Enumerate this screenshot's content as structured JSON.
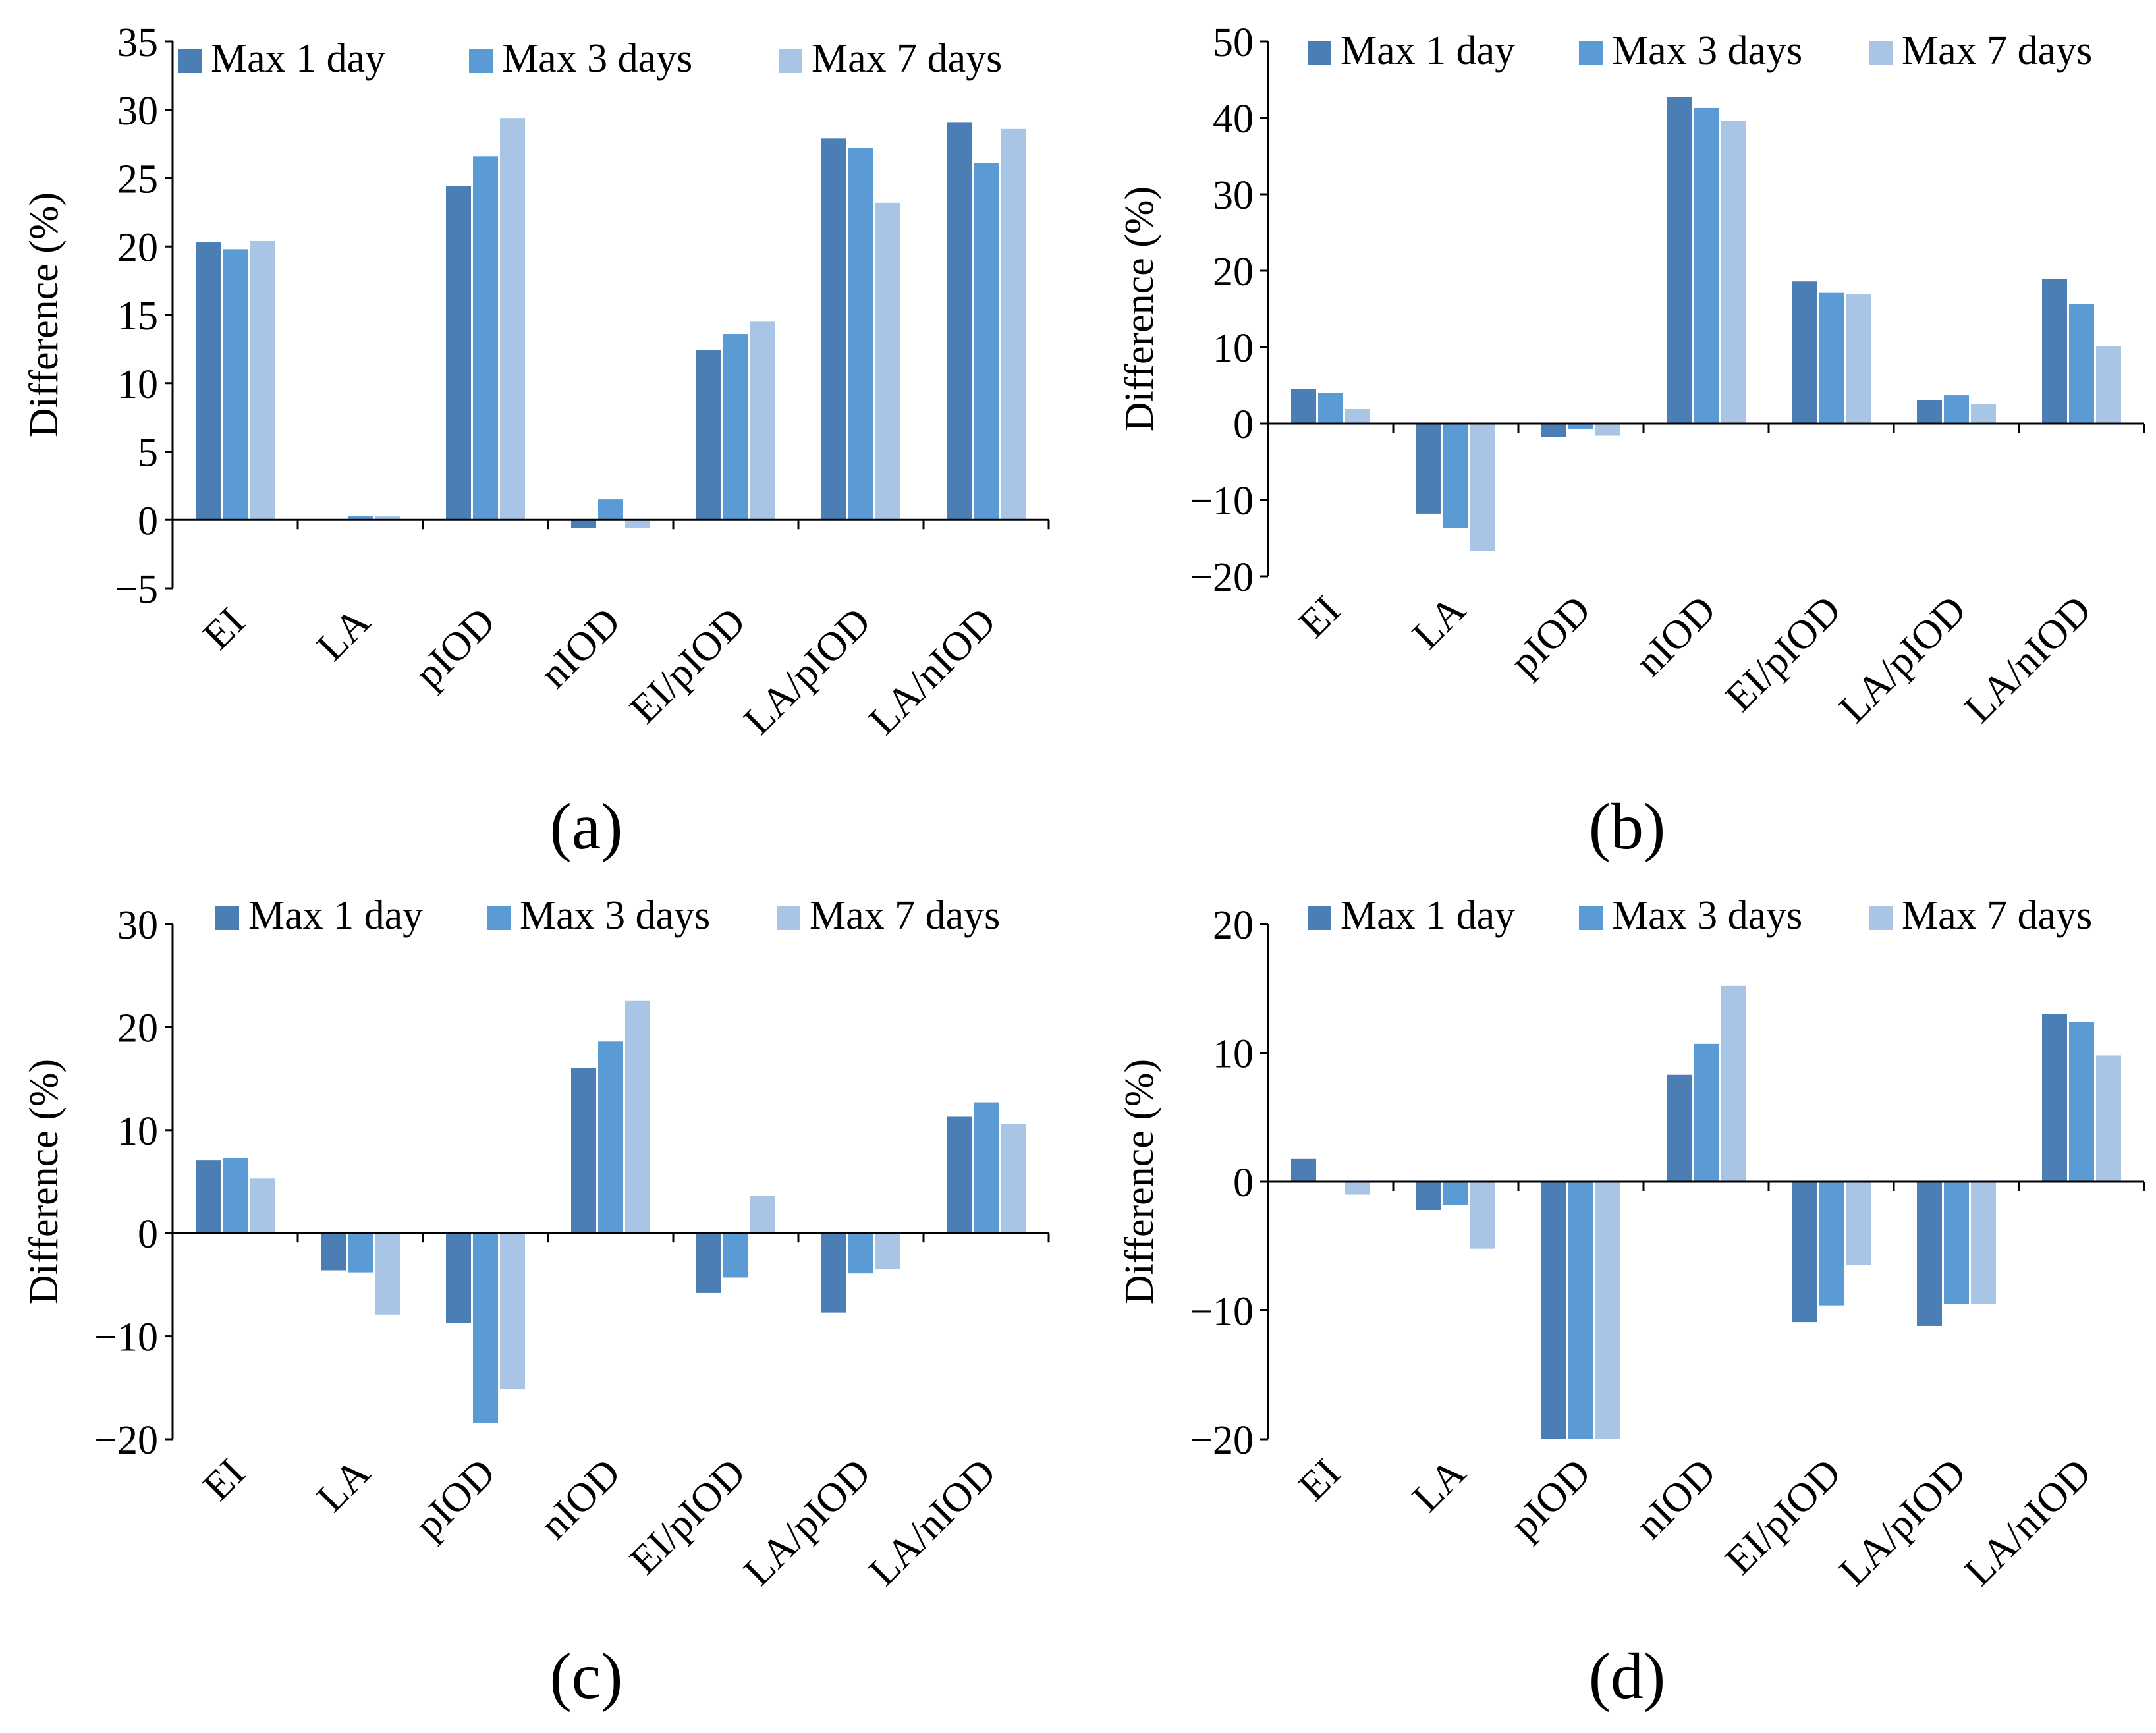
{
  "chart_data": [
    {
      "id": "a",
      "type": "bar",
      "panel_label": "(a)",
      "ylabel": "Difference (%)",
      "ylim": [
        -5,
        35
      ],
      "yticks": [
        -5,
        0,
        5,
        10,
        15,
        20,
        25,
        30,
        35
      ],
      "ytick_labels": [
        "−5",
        "0",
        "5",
        "10",
        "15",
        "20",
        "25",
        "30",
        "35"
      ],
      "categories": [
        "EI",
        "LA",
        "pIOD",
        "nIOD",
        "EI/pIOD",
        "LA/pIOD",
        "LA/nIOD"
      ],
      "legend": [
        "Max 1 day",
        "Max 3 days",
        "Max 7 days"
      ],
      "legend_position": "top",
      "series": [
        {
          "name": "Max 1 day",
          "values": [
            20.3,
            0.0,
            24.4,
            -0.6,
            12.4,
            27.9,
            29.1
          ]
        },
        {
          "name": "Max 3 days",
          "values": [
            19.8,
            0.3,
            26.6,
            1.5,
            13.6,
            27.2,
            26.1
          ]
        },
        {
          "name": "Max 7 days",
          "values": [
            20.4,
            0.3,
            29.4,
            -0.6,
            14.5,
            23.2,
            28.6
          ]
        }
      ]
    },
    {
      "id": "b",
      "type": "bar",
      "panel_label": "(b)",
      "ylabel": "Difference (%)",
      "ylim": [
        -20,
        50
      ],
      "yticks": [
        -20,
        -10,
        0,
        10,
        20,
        30,
        40,
        50
      ],
      "ytick_labels": [
        "−20",
        "−10",
        "0",
        "10",
        "20",
        "30",
        "40",
        "50"
      ],
      "categories": [
        "EI",
        "LA",
        "pIOD",
        "nIOD",
        "EI/pIOD",
        "LA/pIOD",
        "LA/nIOD"
      ],
      "legend": [
        "Max 1 day",
        "Max 3 days",
        "Max 7 days"
      ],
      "legend_position": "top",
      "series": [
        {
          "name": "Max 1 day",
          "values": [
            4.5,
            -11.8,
            -1.8,
            42.7,
            18.6,
            3.1,
            18.9
          ]
        },
        {
          "name": "Max 3 days",
          "values": [
            4.0,
            -13.7,
            -0.7,
            41.3,
            17.1,
            3.7,
            15.6
          ]
        },
        {
          "name": "Max 7 days",
          "values": [
            1.9,
            -16.7,
            -1.6,
            39.6,
            16.9,
            2.5,
            10.1
          ]
        }
      ]
    },
    {
      "id": "c",
      "type": "bar",
      "panel_label": "(c)",
      "ylabel": "Difference (%)",
      "ylim": [
        -20,
        30
      ],
      "yticks": [
        -20,
        -10,
        0,
        10,
        20,
        30
      ],
      "ytick_labels": [
        "−20",
        "−10",
        "0",
        "10",
        "20",
        "30"
      ],
      "categories": [
        "EI",
        "LA",
        "pIOD",
        "nIOD",
        "EI/pIOD",
        "LA/pIOD",
        "LA/nIOD"
      ],
      "legend": [
        "Max 1 day",
        "Max 3 days",
        "Max 7 days"
      ],
      "legend_position": "top",
      "series": [
        {
          "name": "Max 1 day",
          "values": [
            7.1,
            -3.6,
            -8.7,
            16.0,
            -5.8,
            -7.7,
            11.3
          ]
        },
        {
          "name": "Max 3 days",
          "values": [
            7.3,
            -3.8,
            -18.4,
            18.6,
            -4.3,
            -3.9,
            12.7
          ]
        },
        {
          "name": "Max 7 days",
          "values": [
            5.3,
            -7.9,
            -15.1,
            22.6,
            3.6,
            -3.5,
            10.6
          ]
        }
      ]
    },
    {
      "id": "d",
      "type": "bar",
      "panel_label": "(d)",
      "ylabel": "Difference (%)",
      "ylim": [
        -20,
        20
      ],
      "yticks": [
        -20,
        -10,
        0,
        10,
        20
      ],
      "ytick_labels": [
        "−20",
        "−10",
        "0",
        "10",
        "20"
      ],
      "categories": [
        "EI",
        "LA",
        "pIOD",
        "nIOD",
        "EI/pIOD",
        "LA/pIOD",
        "LA/nIOD"
      ],
      "legend": [
        "Max 1 day",
        "Max 3 days",
        "Max 7 days"
      ],
      "legend_position": "top",
      "series": [
        {
          "name": "Max 1 day",
          "values": [
            1.8,
            -2.2,
            -20.0,
            8.3,
            -10.9,
            -11.2,
            13.0
          ]
        },
        {
          "name": "Max 3 days",
          "values": [
            0.0,
            -1.8,
            -20.0,
            10.7,
            -9.6,
            -9.5,
            12.4
          ]
        },
        {
          "name": "Max 7 days",
          "values": [
            -1.0,
            -5.2,
            -20.0,
            15.2,
            -6.5,
            -9.5,
            9.8
          ]
        }
      ]
    }
  ],
  "colors": {
    "series": [
      "#4a7eb5",
      "#5b9bd5",
      "#a8c5e6"
    ],
    "axis": "#000000"
  }
}
